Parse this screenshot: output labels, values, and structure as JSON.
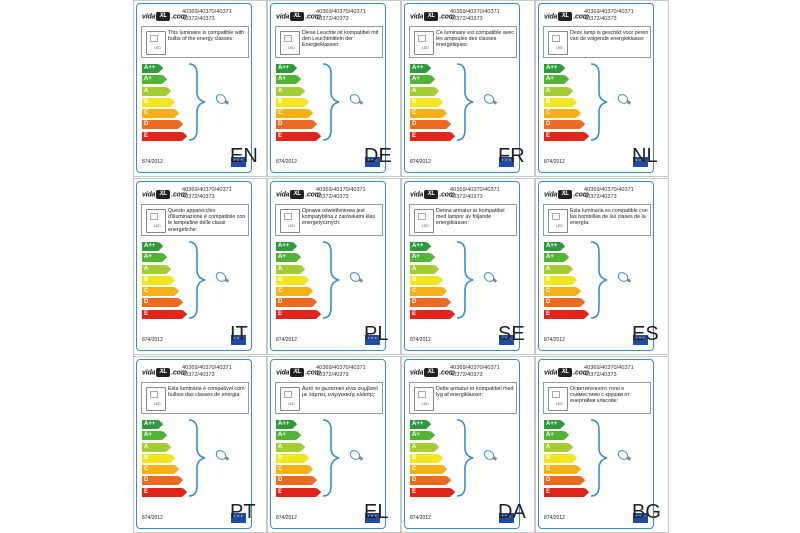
{
  "panels": [
    {
      "lang": "EN",
      "desc": "This luminaire is compatible with bulbs of the energy classes:"
    },
    {
      "lang": "DE",
      "desc": "Diese Leuchte ist kompatibel mit den Leuchtmitteln der Energieklassen:"
    },
    {
      "lang": "FR",
      "desc": "Ce luminaire est compatible avec les ampoules des classes énergétiques:"
    },
    {
      "lang": "NL",
      "desc": "Deze lamp is geschikt voor peren van de volgende energieklasse:"
    },
    {
      "lang": "IT",
      "desc": "Questo apparecchio d'illuminazione è compatibile con le lampadine delle classi energetiche:"
    },
    {
      "lang": "PL",
      "desc": "Oprawa oświetleniowa jest kompatybilna z żarówkami klas energetycznych:"
    },
    {
      "lang": "SE",
      "desc": "Denna armatur är kompatibel med lampor av följande energiklasser:"
    },
    {
      "lang": "ES",
      "desc": "Esta luminaria es compatible con las bombillas de las clases de la energía:"
    },
    {
      "lang": "PT",
      "desc": "Esta luminária é compatível com bulbos das classes de energia:"
    },
    {
      "lang": "EL",
      "desc": "Αυτό το φωτιστικό είναι συμβατό με λάμπες ενεργειακής κλάσης:"
    },
    {
      "lang": "DA",
      "desc": "Dette armatur er kompatibel med lyg af energiklasser:"
    },
    {
      "lang": "BG",
      "desc": "Осветителното тяло е съвместимо с крушки от енергийни класове:"
    }
  ],
  "brand": "vida",
  "brand_suffix": "XL",
  "brand_tld": ".com",
  "codes_line1": "40369/40370/40371",
  "codes_line2": "40372/40373",
  "lamp_label": "LED",
  "regulation": "874/2012",
  "energy_classes": [
    {
      "label": "A++",
      "color": "#2e9a3c"
    },
    {
      "label": "A+",
      "color": "#52b334"
    },
    {
      "label": "A",
      "color": "#a6cc34"
    },
    {
      "label": "B",
      "color": "#f2e61f"
    },
    {
      "label": "C",
      "color": "#f4b117"
    },
    {
      "label": "D",
      "color": "#ec6b20"
    },
    {
      "label": "E",
      "color": "#e2251c"
    }
  ],
  "colors": {
    "frame": "#3a8fc8",
    "eu_flag": "#1f4aa8",
    "bulb_outline": "#3a8fc8"
  }
}
